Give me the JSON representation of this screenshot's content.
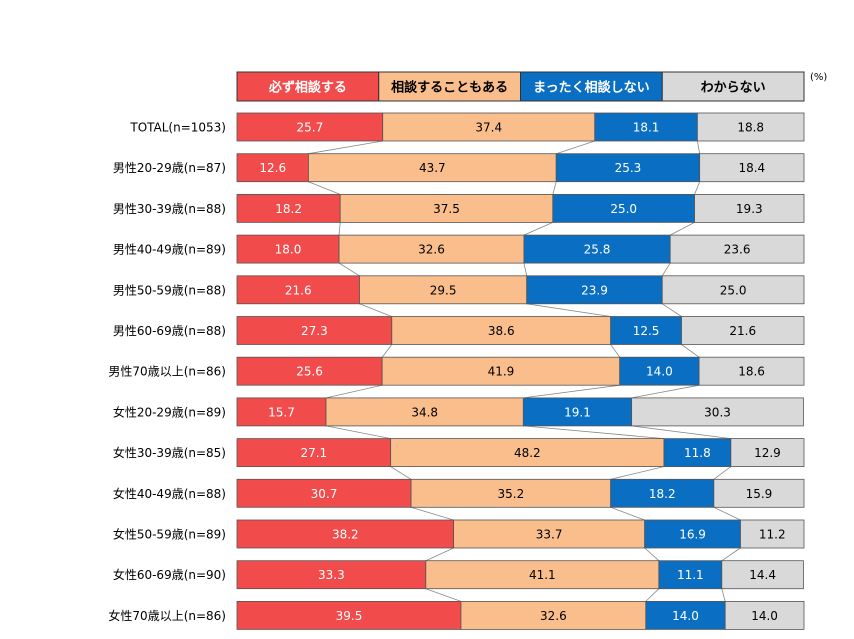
{
  "chart_data": {
    "type": "bar",
    "stacked": true,
    "orientation": "horizontal",
    "percent_stacked": true,
    "unit": "(%)",
    "categories": [
      "TOTAL(n=1053)",
      "男性20-29歳(n=87)",
      "男性30-39歳(n=88)",
      "男性40-49歳(n=89)",
      "男性50-59歳(n=88)",
      "男性60-69歳(n=88)",
      "男性70歳以上(n=86)",
      "女性20-29歳(n=89)",
      "女性30-39歳(n=85)",
      "女性40-49歳(n=88)",
      "女性50-59歳(n=89)",
      "女性60-69歳(n=90)",
      "女性70歳以上(n=86)"
    ],
    "series": [
      {
        "name": "必ず相談する",
        "color": "#f24b4b",
        "text_color": "#ffffff",
        "values": [
          25.7,
          12.6,
          18.2,
          18.0,
          21.6,
          27.3,
          25.6,
          15.7,
          27.1,
          30.7,
          38.2,
          33.3,
          39.5
        ],
        "labels": [
          "25.7",
          "12.6",
          "18.2",
          "18.0",
          "21.6",
          "27.3",
          "25.6",
          "15.7",
          "27.1",
          "30.7",
          "38.2",
          "33.3",
          "39.5"
        ]
      },
      {
        "name": "相談することもある",
        "color": "#f9be8c",
        "text_color": "#000000",
        "values": [
          37.4,
          43.7,
          37.5,
          32.6,
          29.5,
          38.6,
          41.9,
          34.8,
          48.2,
          35.2,
          33.7,
          41.1,
          32.6
        ],
        "labels": [
          "37.4",
          "43.7",
          "37.5",
          "32.6",
          "29.5",
          "38.6",
          "41.9",
          "34.8",
          "48.2",
          "35.2",
          "33.7",
          "41.1",
          "32.6"
        ]
      },
      {
        "name": "まったく相談しない",
        "color": "#0a6fc2",
        "text_color": "#ffffff",
        "values": [
          18.1,
          25.3,
          25.0,
          25.8,
          23.9,
          12.5,
          14.0,
          19.1,
          11.8,
          18.2,
          16.9,
          11.1,
          14.0
        ],
        "labels": [
          "18.1",
          "25.3",
          "25.0",
          "25.8",
          "23.9",
          "12.5",
          "14.0",
          "19.1",
          "11.8",
          "18.2",
          "16.9",
          "11.1",
          "14.0"
        ]
      },
      {
        "name": "わからない",
        "color": "#d9d9d9",
        "text_color": "#000000",
        "values": [
          18.8,
          18.4,
          19.3,
          23.6,
          25.0,
          21.6,
          18.6,
          30.3,
          12.9,
          15.9,
          11.2,
          14.4,
          14.0
        ],
        "labels": [
          "18.8",
          "18.4",
          "19.3",
          "23.6",
          "25.0",
          "21.6",
          "18.6",
          "30.3",
          "12.9",
          "15.9",
          "11.2",
          "14.4",
          "14.0"
        ]
      }
    ],
    "legend_position": "top",
    "gridlines": false,
    "series_lines": true
  }
}
